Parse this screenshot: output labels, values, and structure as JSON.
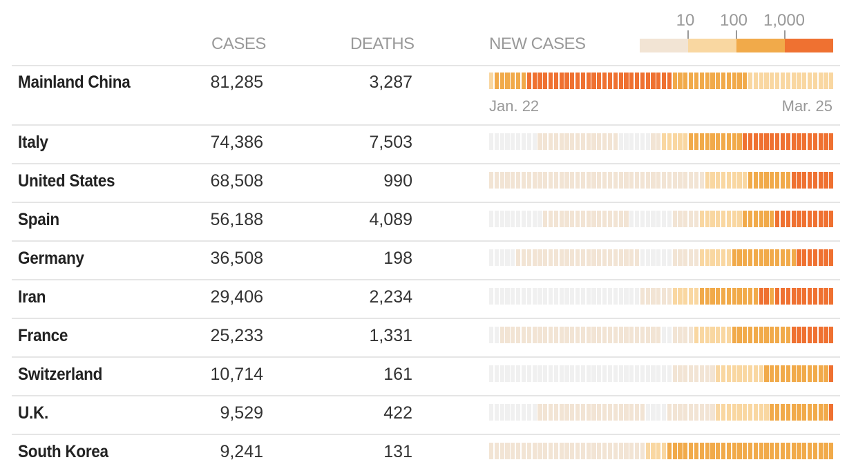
{
  "headers": {
    "cases": "CASES",
    "deaths": "DEATHS",
    "new_cases": "NEW CASES"
  },
  "legend": {
    "ticks": [
      "10",
      "100",
      "1,000"
    ],
    "colors": [
      "#f2e4d4",
      "#f9d7a1",
      "#f1aa4a",
      "#ef7131"
    ],
    "none_color": "#f0f0f0"
  },
  "date_start": "Jan. 22",
  "date_end": "Mar. 25",
  "chart_data": {
    "type": "heatmap",
    "title": "NEW CASES",
    "x_range": [
      "Jan. 22",
      "Mar. 25"
    ],
    "levels": {
      "0": "no new cases",
      "1": "<10",
      "2": "10-100",
      "3": "100-1,000",
      "4": ">1,000"
    },
    "rows": [
      {
        "country": "Mainland China",
        "cases": "81,285",
        "deaths": "3,287",
        "runs": [
          [
            2,
            1
          ],
          [
            3,
            6
          ],
          [
            4,
            27
          ],
          [
            3,
            14
          ],
          [
            2,
            16
          ]
        ]
      },
      {
        "country": "Italy",
        "cases": "74,386",
        "deaths": "7,503",
        "runs": [
          [
            0,
            9
          ],
          [
            1,
            15
          ],
          [
            0,
            6
          ],
          [
            1,
            2
          ],
          [
            2,
            5
          ],
          [
            3,
            10
          ],
          [
            4,
            17
          ]
        ]
      },
      {
        "country": "United States",
        "cases": "68,508",
        "deaths": "990",
        "runs": [
          [
            1,
            40
          ],
          [
            2,
            8
          ],
          [
            3,
            8
          ],
          [
            4,
            8
          ]
        ]
      },
      {
        "country": "Spain",
        "cases": "56,188",
        "deaths": "4,089",
        "runs": [
          [
            0,
            10
          ],
          [
            1,
            16
          ],
          [
            0,
            8
          ],
          [
            1,
            5
          ],
          [
            2,
            8
          ],
          [
            3,
            6
          ],
          [
            4,
            11
          ]
        ]
      },
      {
        "country": "Germany",
        "cases": "36,508",
        "deaths": "198",
        "runs": [
          [
            0,
            5
          ],
          [
            1,
            23
          ],
          [
            0,
            6
          ],
          [
            1,
            5
          ],
          [
            2,
            6
          ],
          [
            3,
            12
          ],
          [
            4,
            7
          ]
        ]
      },
      {
        "country": "Iran",
        "cases": "29,406",
        "deaths": "2,234",
        "runs": [
          [
            0,
            28
          ],
          [
            1,
            6
          ],
          [
            2,
            5
          ],
          [
            3,
            11
          ],
          [
            4,
            2
          ],
          [
            3,
            1
          ],
          [
            4,
            11
          ]
        ]
      },
      {
        "country": "France",
        "cases": "25,233",
        "deaths": "1,331",
        "runs": [
          [
            0,
            2
          ],
          [
            1,
            30
          ],
          [
            0,
            2
          ],
          [
            1,
            4
          ],
          [
            2,
            7
          ],
          [
            3,
            11
          ],
          [
            4,
            8
          ]
        ]
      },
      {
        "country": "Switzerland",
        "cases": "10,714",
        "deaths": "161",
        "runs": [
          [
            0,
            34
          ],
          [
            1,
            8
          ],
          [
            2,
            9
          ],
          [
            3,
            12
          ],
          [
            4,
            1
          ]
        ]
      },
      {
        "country": "U.K.",
        "cases": "9,529",
        "deaths": "422",
        "runs": [
          [
            0,
            9
          ],
          [
            1,
            20
          ],
          [
            0,
            4
          ],
          [
            1,
            9
          ],
          [
            2,
            10
          ],
          [
            3,
            11
          ],
          [
            4,
            1
          ]
        ]
      },
      {
        "country": "South Korea",
        "cases": "9,241",
        "deaths": "131",
        "runs": [
          [
            1,
            29
          ],
          [
            2,
            4
          ],
          [
            3,
            31
          ]
        ]
      }
    ]
  }
}
